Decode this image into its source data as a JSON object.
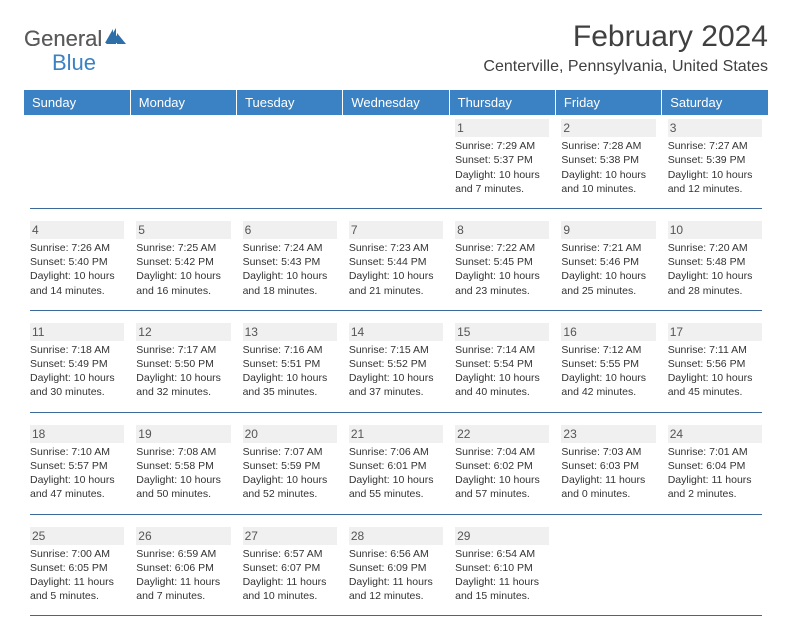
{
  "logo": {
    "word1": "General",
    "word2": "Blue"
  },
  "title": "February 2024",
  "location": "Centerville, Pennsylvania, United States",
  "colors": {
    "header_bg": "#3b82c4",
    "header_text": "#ffffff",
    "rule": "#3b6a9a",
    "text": "#333333",
    "muted": "#555555",
    "shade": "#f0f0f0"
  },
  "day_headers": [
    "Sunday",
    "Monday",
    "Tuesday",
    "Wednesday",
    "Thursday",
    "Friday",
    "Saturday"
  ],
  "weeks": [
    [
      null,
      null,
      null,
      null,
      {
        "n": "1",
        "sunrise": "7:29 AM",
        "sunset": "5:37 PM",
        "dl1": "Daylight: 10 hours",
        "dl2": "and 7 minutes."
      },
      {
        "n": "2",
        "sunrise": "7:28 AM",
        "sunset": "5:38 PM",
        "dl1": "Daylight: 10 hours",
        "dl2": "and 10 minutes."
      },
      {
        "n": "3",
        "sunrise": "7:27 AM",
        "sunset": "5:39 PM",
        "dl1": "Daylight: 10 hours",
        "dl2": "and 12 minutes."
      }
    ],
    [
      {
        "n": "4",
        "sunrise": "7:26 AM",
        "sunset": "5:40 PM",
        "dl1": "Daylight: 10 hours",
        "dl2": "and 14 minutes."
      },
      {
        "n": "5",
        "sunrise": "7:25 AM",
        "sunset": "5:42 PM",
        "dl1": "Daylight: 10 hours",
        "dl2": "and 16 minutes."
      },
      {
        "n": "6",
        "sunrise": "7:24 AM",
        "sunset": "5:43 PM",
        "dl1": "Daylight: 10 hours",
        "dl2": "and 18 minutes."
      },
      {
        "n": "7",
        "sunrise": "7:23 AM",
        "sunset": "5:44 PM",
        "dl1": "Daylight: 10 hours",
        "dl2": "and 21 minutes."
      },
      {
        "n": "8",
        "sunrise": "7:22 AM",
        "sunset": "5:45 PM",
        "dl1": "Daylight: 10 hours",
        "dl2": "and 23 minutes."
      },
      {
        "n": "9",
        "sunrise": "7:21 AM",
        "sunset": "5:46 PM",
        "dl1": "Daylight: 10 hours",
        "dl2": "and 25 minutes."
      },
      {
        "n": "10",
        "sunrise": "7:20 AM",
        "sunset": "5:48 PM",
        "dl1": "Daylight: 10 hours",
        "dl2": "and 28 minutes."
      }
    ],
    [
      {
        "n": "11",
        "sunrise": "7:18 AM",
        "sunset": "5:49 PM",
        "dl1": "Daylight: 10 hours",
        "dl2": "and 30 minutes."
      },
      {
        "n": "12",
        "sunrise": "7:17 AM",
        "sunset": "5:50 PM",
        "dl1": "Daylight: 10 hours",
        "dl2": "and 32 minutes."
      },
      {
        "n": "13",
        "sunrise": "7:16 AM",
        "sunset": "5:51 PM",
        "dl1": "Daylight: 10 hours",
        "dl2": "and 35 minutes."
      },
      {
        "n": "14",
        "sunrise": "7:15 AM",
        "sunset": "5:52 PM",
        "dl1": "Daylight: 10 hours",
        "dl2": "and 37 minutes."
      },
      {
        "n": "15",
        "sunrise": "7:14 AM",
        "sunset": "5:54 PM",
        "dl1": "Daylight: 10 hours",
        "dl2": "and 40 minutes."
      },
      {
        "n": "16",
        "sunrise": "7:12 AM",
        "sunset": "5:55 PM",
        "dl1": "Daylight: 10 hours",
        "dl2": "and 42 minutes."
      },
      {
        "n": "17",
        "sunrise": "7:11 AM",
        "sunset": "5:56 PM",
        "dl1": "Daylight: 10 hours",
        "dl2": "and 45 minutes."
      }
    ],
    [
      {
        "n": "18",
        "sunrise": "7:10 AM",
        "sunset": "5:57 PM",
        "dl1": "Daylight: 10 hours",
        "dl2": "and 47 minutes."
      },
      {
        "n": "19",
        "sunrise": "7:08 AM",
        "sunset": "5:58 PM",
        "dl1": "Daylight: 10 hours",
        "dl2": "and 50 minutes."
      },
      {
        "n": "20",
        "sunrise": "7:07 AM",
        "sunset": "5:59 PM",
        "dl1": "Daylight: 10 hours",
        "dl2": "and 52 minutes."
      },
      {
        "n": "21",
        "sunrise": "7:06 AM",
        "sunset": "6:01 PM",
        "dl1": "Daylight: 10 hours",
        "dl2": "and 55 minutes."
      },
      {
        "n": "22",
        "sunrise": "7:04 AM",
        "sunset": "6:02 PM",
        "dl1": "Daylight: 10 hours",
        "dl2": "and 57 minutes."
      },
      {
        "n": "23",
        "sunrise": "7:03 AM",
        "sunset": "6:03 PM",
        "dl1": "Daylight: 11 hours",
        "dl2": "and 0 minutes."
      },
      {
        "n": "24",
        "sunrise": "7:01 AM",
        "sunset": "6:04 PM",
        "dl1": "Daylight: 11 hours",
        "dl2": "and 2 minutes."
      }
    ],
    [
      {
        "n": "25",
        "sunrise": "7:00 AM",
        "sunset": "6:05 PM",
        "dl1": "Daylight: 11 hours",
        "dl2": "and 5 minutes."
      },
      {
        "n": "26",
        "sunrise": "6:59 AM",
        "sunset": "6:06 PM",
        "dl1": "Daylight: 11 hours",
        "dl2": "and 7 minutes."
      },
      {
        "n": "27",
        "sunrise": "6:57 AM",
        "sunset": "6:07 PM",
        "dl1": "Daylight: 11 hours",
        "dl2": "and 10 minutes."
      },
      {
        "n": "28",
        "sunrise": "6:56 AM",
        "sunset": "6:09 PM",
        "dl1": "Daylight: 11 hours",
        "dl2": "and 12 minutes."
      },
      {
        "n": "29",
        "sunrise": "6:54 AM",
        "sunset": "6:10 PM",
        "dl1": "Daylight: 11 hours",
        "dl2": "and 15 minutes."
      },
      null,
      null
    ]
  ]
}
